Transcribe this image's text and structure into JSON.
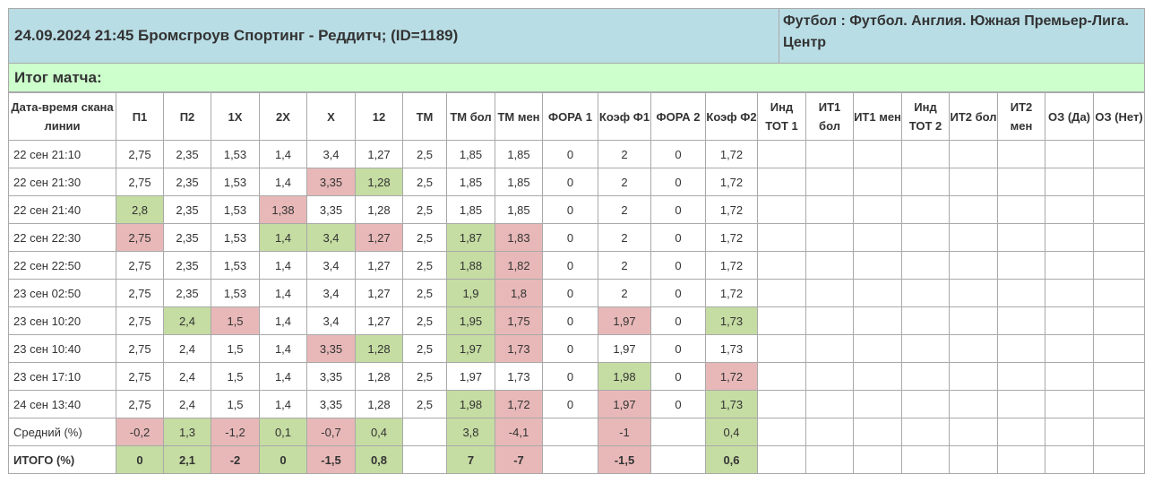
{
  "header": {
    "match_title": "24.09.2024 21:45 Бромсгроув Спортинг - Реддитч; (ID=1189)",
    "league": "Футбол : Футбол. Англия. Южная Премьер-Лига. Центр"
  },
  "result_label": "Итог матча:",
  "columns": [
    "Дата-время скана линии",
    "П1",
    "П2",
    "1Х",
    "2Х",
    "Х",
    "12",
    "ТМ",
    "ТМ бол",
    "ТМ мен",
    "ФОРА 1",
    "Коэф Ф1",
    "ФОРА 2",
    "Коэф Ф2",
    "Инд ТОТ 1",
    "ИТ1 бол",
    "ИТ1 мен",
    "Инд ТОТ 2",
    "ИТ2 бол",
    "ИТ2 мен",
    "ОЗ (Да)",
    "ОЗ (Нет)"
  ],
  "rows": [
    {
      "values": [
        "22 сен 21:10",
        "2,75",
        "2,35",
        "1,53",
        "1,4",
        "3,4",
        "1,27",
        "2,5",
        "1,85",
        "1,85",
        "0",
        "2",
        "0",
        "1,72",
        "",
        "",
        "",
        "",
        "",
        "",
        "",
        ""
      ],
      "colors": [
        "",
        "",
        "",
        "",
        "",
        "",
        "",
        "",
        "",
        "",
        "",
        "",
        "",
        "",
        "",
        "",
        "",
        "",
        "",
        "",
        "",
        ""
      ]
    },
    {
      "values": [
        "22 сен 21:30",
        "2,75",
        "2,35",
        "1,53",
        "1,4",
        "3,35",
        "1,28",
        "2,5",
        "1,85",
        "1,85",
        "0",
        "2",
        "0",
        "1,72",
        "",
        "",
        "",
        "",
        "",
        "",
        "",
        ""
      ],
      "colors": [
        "",
        "",
        "",
        "",
        "",
        "r",
        "g",
        "",
        "",
        "",
        "",
        "",
        "",
        "",
        "",
        "",
        "",
        "",
        "",
        "",
        "",
        ""
      ]
    },
    {
      "values": [
        "22 сен 21:40",
        "2,8",
        "2,35",
        "1,53",
        "1,38",
        "3,35",
        "1,28",
        "2,5",
        "1,85",
        "1,85",
        "0",
        "2",
        "0",
        "1,72",
        "",
        "",
        "",
        "",
        "",
        "",
        "",
        ""
      ],
      "colors": [
        "",
        "g",
        "",
        "",
        "r",
        "",
        "",
        "",
        "",
        "",
        "",
        "",
        "",
        "",
        "",
        "",
        "",
        "",
        "",
        "",
        "",
        ""
      ]
    },
    {
      "values": [
        "22 сен 22:30",
        "2,75",
        "2,35",
        "1,53",
        "1,4",
        "3,4",
        "1,27",
        "2,5",
        "1,87",
        "1,83",
        "0",
        "2",
        "0",
        "1,72",
        "",
        "",
        "",
        "",
        "",
        "",
        "",
        ""
      ],
      "colors": [
        "",
        "r",
        "",
        "",
        "g",
        "g",
        "r",
        "",
        "g",
        "r",
        "",
        "",
        "",
        "",
        "",
        "",
        "",
        "",
        "",
        "",
        "",
        ""
      ]
    },
    {
      "values": [
        "22 сен 22:50",
        "2,75",
        "2,35",
        "1,53",
        "1,4",
        "3,4",
        "1,27",
        "2,5",
        "1,88",
        "1,82",
        "0",
        "2",
        "0",
        "1,72",
        "",
        "",
        "",
        "",
        "",
        "",
        "",
        ""
      ],
      "colors": [
        "",
        "",
        "",
        "",
        "",
        "",
        "",
        "",
        "g",
        "r",
        "",
        "",
        "",
        "",
        "",
        "",
        "",
        "",
        "",
        "",
        "",
        ""
      ]
    },
    {
      "values": [
        "23 сен 02:50",
        "2,75",
        "2,35",
        "1,53",
        "1,4",
        "3,4",
        "1,27",
        "2,5",
        "1,9",
        "1,8",
        "0",
        "2",
        "0",
        "1,72",
        "",
        "",
        "",
        "",
        "",
        "",
        "",
        ""
      ],
      "colors": [
        "",
        "",
        "",
        "",
        "",
        "",
        "",
        "",
        "g",
        "r",
        "",
        "",
        "",
        "",
        "",
        "",
        "",
        "",
        "",
        "",
        "",
        ""
      ]
    },
    {
      "values": [
        "23 сен 10:20",
        "2,75",
        "2,4",
        "1,5",
        "1,4",
        "3,4",
        "1,27",
        "2,5",
        "1,95",
        "1,75",
        "0",
        "1,97",
        "0",
        "1,73",
        "",
        "",
        "",
        "",
        "",
        "",
        "",
        ""
      ],
      "colors": [
        "",
        "",
        "g",
        "r",
        "",
        "",
        "",
        "",
        "g",
        "r",
        "",
        "r",
        "",
        "g",
        "",
        "",
        "",
        "",
        "",
        "",
        "",
        ""
      ]
    },
    {
      "values": [
        "23 сен 10:40",
        "2,75",
        "2,4",
        "1,5",
        "1,4",
        "3,35",
        "1,28",
        "2,5",
        "1,97",
        "1,73",
        "0",
        "1,97",
        "0",
        "1,73",
        "",
        "",
        "",
        "",
        "",
        "",
        "",
        ""
      ],
      "colors": [
        "",
        "",
        "",
        "",
        "",
        "r",
        "g",
        "",
        "g",
        "r",
        "",
        "",
        "",
        "",
        "",
        "",
        "",
        "",
        "",
        "",
        "",
        ""
      ]
    },
    {
      "values": [
        "23 сен 17:10",
        "2,75",
        "2,4",
        "1,5",
        "1,4",
        "3,35",
        "1,28",
        "2,5",
        "1,97",
        "1,73",
        "0",
        "1,98",
        "0",
        "1,72",
        "",
        "",
        "",
        "",
        "",
        "",
        "",
        ""
      ],
      "colors": [
        "",
        "",
        "",
        "",
        "",
        "",
        "",
        "",
        "",
        "",
        "",
        "g",
        "",
        "r",
        "",
        "",
        "",
        "",
        "",
        "",
        "",
        ""
      ]
    },
    {
      "values": [
        "24 сен 13:40",
        "2,75",
        "2,4",
        "1,5",
        "1,4",
        "3,35",
        "1,28",
        "2,5",
        "1,98",
        "1,72",
        "0",
        "1,97",
        "0",
        "1,73",
        "",
        "",
        "",
        "",
        "",
        "",
        "",
        ""
      ],
      "colors": [
        "",
        "",
        "",
        "",
        "",
        "",
        "",
        "",
        "g",
        "r",
        "",
        "r",
        "",
        "g",
        "",
        "",
        "",
        "",
        "",
        "",
        "",
        ""
      ]
    },
    {
      "values": [
        "Средний (%)",
        "-0,2",
        "1,3",
        "-1,2",
        "0,1",
        "-0,7",
        "0,4",
        "",
        "3,8",
        "-4,1",
        "",
        "-1",
        "",
        "0,4",
        "",
        "",
        "",
        "",
        "",
        "",
        "",
        ""
      ],
      "colors": [
        "",
        "r",
        "g",
        "r",
        "g",
        "r",
        "g",
        "",
        "g",
        "r",
        "",
        "r",
        "",
        "g",
        "",
        "",
        "",
        "",
        "",
        "",
        "",
        ""
      ]
    },
    {
      "values": [
        "ИТОГО (%)",
        "0",
        "2,1",
        "-2",
        "0",
        "-1,5",
        "0,8",
        "",
        "7",
        "-7",
        "",
        "-1,5",
        "",
        "0,6",
        "",
        "",
        "",
        "",
        "",
        "",
        "",
        ""
      ],
      "colors": [
        "",
        "g",
        "g",
        "r",
        "g",
        "r",
        "g",
        "",
        "g",
        "r",
        "",
        "r",
        "",
        "g",
        "",
        "",
        "",
        "",
        "",
        "",
        "",
        ""
      ],
      "total": true
    }
  ]
}
